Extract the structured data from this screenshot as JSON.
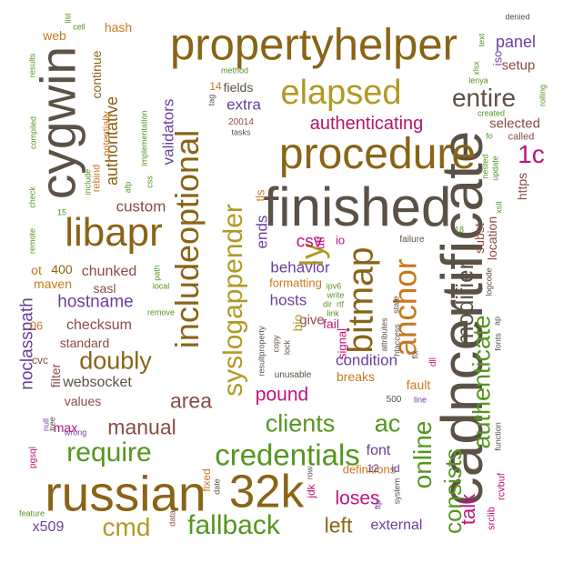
{
  "words": [
    {
      "text": "cadncertificate",
      "color": "#5b5145"
    },
    {
      "text": "finished",
      "color": "#5b5145"
    },
    {
      "text": "propertyhelper",
      "color": "#8a6416"
    },
    {
      "text": "cygwin",
      "color": "#5b5145"
    },
    {
      "text": "russian",
      "color": "#8a6416"
    },
    {
      "text": "32k",
      "color": "#8a6416"
    },
    {
      "text": "procedure",
      "color": "#8a6416"
    },
    {
      "text": "includeoptional",
      "color": "#8a6416"
    },
    {
      "text": "libapr",
      "color": "#8a6416"
    },
    {
      "text": "elapsed",
      "color": "#b09a24"
    },
    {
      "text": "bitmap",
      "color": "#8a6416"
    },
    {
      "text": "syslogappender",
      "color": "#b09a24"
    },
    {
      "text": "anchor",
      "color": "#c8791c"
    },
    {
      "text": "authenticate",
      "color": "#55961e"
    },
    {
      "text": "credentials",
      "color": "#55961e"
    },
    {
      "text": "require",
      "color": "#55961e"
    },
    {
      "text": "fallback",
      "color": "#55961e"
    },
    {
      "text": "clients",
      "color": "#55961e"
    },
    {
      "text": "ac",
      "color": "#55961e"
    },
    {
      "text": "modifier",
      "color": "#5b5145"
    },
    {
      "text": "online",
      "color": "#55961e"
    },
    {
      "text": "consists",
      "color": "#55961e"
    },
    {
      "text": "entire",
      "color": "#5b5145"
    },
    {
      "text": "cmd",
      "color": "#b09a24"
    },
    {
      "text": "ly",
      "color": "#b09a24"
    },
    {
      "text": "authenticating",
      "color": "#b0166e"
    },
    {
      "text": "1c",
      "color": "#c0137c"
    },
    {
      "text": "doubly",
      "color": "#8a6416"
    },
    {
      "text": "manual",
      "color": "#8a4c44"
    },
    {
      "text": "area",
      "color": "#8a4c44"
    },
    {
      "text": "left",
      "color": "#8a6416"
    },
    {
      "text": "talk",
      "color": "#c0137c"
    },
    {
      "text": "pound",
      "color": "#c0137c"
    },
    {
      "text": "authoritative",
      "color": "#8a6416"
    },
    {
      "text": "noclasspath",
      "color": "#6a3fa0"
    },
    {
      "text": "loses",
      "color": "#c0137c"
    },
    {
      "text": "hostname",
      "color": "#6a3fa0"
    },
    {
      "text": "behavior",
      "color": "#6a3fa0"
    },
    {
      "text": "hosts",
      "color": "#6a3fa0"
    },
    {
      "text": "csv",
      "color": "#c0137c"
    },
    {
      "text": "condition",
      "color": "#6a3fa0"
    },
    {
      "text": "panel",
      "color": "#6a3fa0"
    },
    {
      "text": "validators",
      "color": "#6a3fa0"
    },
    {
      "text": "custom",
      "color": "#8a4c44"
    },
    {
      "text": "extra",
      "color": "#6a3fa0"
    },
    {
      "text": "chunked",
      "color": "#8a4c44"
    },
    {
      "text": "websocket",
      "color": "#5b5145"
    },
    {
      "text": "checksum",
      "color": "#8a4c44"
    },
    {
      "text": "font",
      "color": "#6a3fa0"
    },
    {
      "text": "external",
      "color": "#6a3fa0"
    },
    {
      "text": "ends",
      "color": "#6a3fa0"
    },
    {
      "text": "x509",
      "color": "#6a3fa0"
    },
    {
      "text": "selected",
      "color": "#8a4c44"
    },
    {
      "text": "setup",
      "color": "#8a4c44"
    },
    {
      "text": "location",
      "color": "#8a4c44"
    },
    {
      "text": "https",
      "color": "#8a4c44"
    },
    {
      "text": "continue",
      "color": "#8a6416"
    },
    {
      "text": "web",
      "color": "#c8791c"
    },
    {
      "text": "hash",
      "color": "#c8791c"
    },
    {
      "text": "fields",
      "color": "#5b5145"
    },
    {
      "text": "give",
      "color": "#8a4c44"
    },
    {
      "text": "bio",
      "color": "#b09a24"
    },
    {
      "text": "max",
      "color": "#c0137c"
    },
    {
      "text": "values",
      "color": "#8a4c44"
    },
    {
      "text": "filter",
      "color": "#8a4c44"
    },
    {
      "text": "standard",
      "color": "#8a4c44"
    },
    {
      "text": "maven",
      "color": "#c8791c"
    },
    {
      "text": "fail",
      "color": "#c0137c"
    },
    {
      "text": "sasl",
      "color": "#8a4c44"
    },
    {
      "text": "formatting",
      "color": "#c8791c"
    },
    {
      "text": "fault",
      "color": "#c8791c"
    },
    {
      "text": "breaks",
      "color": "#c8791c"
    },
    {
      "text": "subst",
      "color": "#8a4c44"
    },
    {
      "text": "definitions",
      "color": "#c8791c"
    },
    {
      "text": "400",
      "color": "#8a6416"
    },
    {
      "text": "ot",
      "color": "#c8791c"
    },
    {
      "text": "potentially",
      "color": "#c8791c"
    },
    {
      "text": "rebind",
      "color": "#c8791c"
    },
    {
      "text": "utf",
      "color": "#c0137c"
    },
    {
      "text": "io",
      "color": "#c0137c"
    },
    {
      "text": "iso",
      "color": "#6a3fa0"
    },
    {
      "text": "tls",
      "color": "#c8791c"
    },
    {
      "text": "signal",
      "color": "#c0137c"
    },
    {
      "text": "06",
      "color": "#c8791c"
    },
    {
      "text": "14",
      "color": "#c8791c"
    },
    {
      "text": "12",
      "color": "#6a3fa0"
    },
    {
      "text": "id",
      "color": "#6a3fa0"
    },
    {
      "text": "cvc",
      "color": "#8a4c44"
    },
    {
      "text": "fixed",
      "color": "#c8791c"
    },
    {
      "text": "jdk",
      "color": "#c0137c"
    },
    {
      "text": "rcvbuf",
      "color": "#c0137c"
    },
    {
      "text": "srclib",
      "color": "#c0137c"
    },
    {
      "text": "called",
      "color": "#8a4c44"
    },
    {
      "text": "20014",
      "color": "#8a4c44"
    },
    {
      "text": "tasks",
      "color": "#5b5145"
    },
    {
      "text": "unusable",
      "color": "#5b5145"
    },
    {
      "text": "failure",
      "color": "#5b5145"
    },
    {
      "text": "dll",
      "color": "#c0137c"
    },
    {
      "text": "500",
      "color": "#5b5145"
    },
    {
      "text": "pgsql",
      "color": "#c0137c"
    },
    {
      "text": "null",
      "color": "#6a3fa0"
    },
    {
      "text": "data",
      "color": "#8a4c44"
    },
    {
      "text": "date",
      "color": "#5b5145"
    },
    {
      "text": "row",
      "color": "#5b5145"
    },
    {
      "text": "ftp",
      "color": "#6a3fa0"
    },
    {
      "text": "system",
      "color": "#5b5145"
    },
    {
      "text": "feature",
      "color": "#55961e"
    },
    {
      "text": "tree",
      "color": "#5b5145"
    },
    {
      "text": "wrong",
      "color": "#6a3fa0"
    },
    {
      "text": "afp",
      "color": "#55961e"
    },
    {
      "text": "implementation",
      "color": "#55961e"
    },
    {
      "text": "include",
      "color": "#55961e"
    },
    {
      "text": "method",
      "color": "#55961e"
    },
    {
      "text": "tag",
      "color": "#5b5145"
    },
    {
      "text": "css",
      "color": "#55961e"
    },
    {
      "text": "results",
      "color": "#55961e"
    },
    {
      "text": "compiled",
      "color": "#55961e"
    },
    {
      "text": "check",
      "color": "#55961e"
    },
    {
      "text": "remote",
      "color": "#55961e"
    },
    {
      "text": "15",
      "color": "#55961e"
    },
    {
      "text": "list",
      "color": "#55961e"
    },
    {
      "text": "cell",
      "color": "#55961e"
    },
    {
      "text": "text",
      "color": "#55961e"
    },
    {
      "text": "denied",
      "color": "#5b5145"
    },
    {
      "text": "xlsx",
      "color": "#55961e"
    },
    {
      "text": "lenya",
      "color": "#55961e"
    },
    {
      "text": "created",
      "color": "#55961e"
    },
    {
      "text": "rolling",
      "color": "#55961e"
    },
    {
      "text": "fo",
      "color": "#55961e"
    },
    {
      "text": "nested",
      "color": "#55961e"
    },
    {
      "text": "update",
      "color": "#55961e"
    },
    {
      "text": "xslt",
      "color": "#55961e"
    },
    {
      "text": "18",
      "color": "#55961e"
    },
    {
      "text": "path",
      "color": "#55961e"
    },
    {
      "text": "local",
      "color": "#55961e"
    },
    {
      "text": "remove",
      "color": "#55961e"
    },
    {
      "text": "ipv6",
      "color": "#55961e"
    },
    {
      "text": "write",
      "color": "#55961e"
    },
    {
      "text": "dir",
      "color": "#55961e"
    },
    {
      "text": "rtf",
      "color": "#55961e"
    },
    {
      "text": "link",
      "color": "#55961e"
    },
    {
      "text": "resultproperty",
      "color": "#5b5145"
    },
    {
      "text": "copy",
      "color": "#5b5145"
    },
    {
      "text": "lock",
      "color": "#5b5145"
    },
    {
      "text": "attributes",
      "color": "#5b5145"
    },
    {
      "text": "state",
      "color": "#5b5145"
    },
    {
      "text": "htaccess",
      "color": "#5b5145"
    },
    {
      "text": "fix",
      "color": "#5b5145"
    },
    {
      "text": "line",
      "color": "#6a3fa0"
    },
    {
      "text": "ap",
      "color": "#5b5145"
    },
    {
      "text": "logcode",
      "color": "#5b5145"
    },
    {
      "text": "fonts",
      "color": "#5b5145"
    },
    {
      "text": "function",
      "color": "#5b5145"
    }
  ]
}
